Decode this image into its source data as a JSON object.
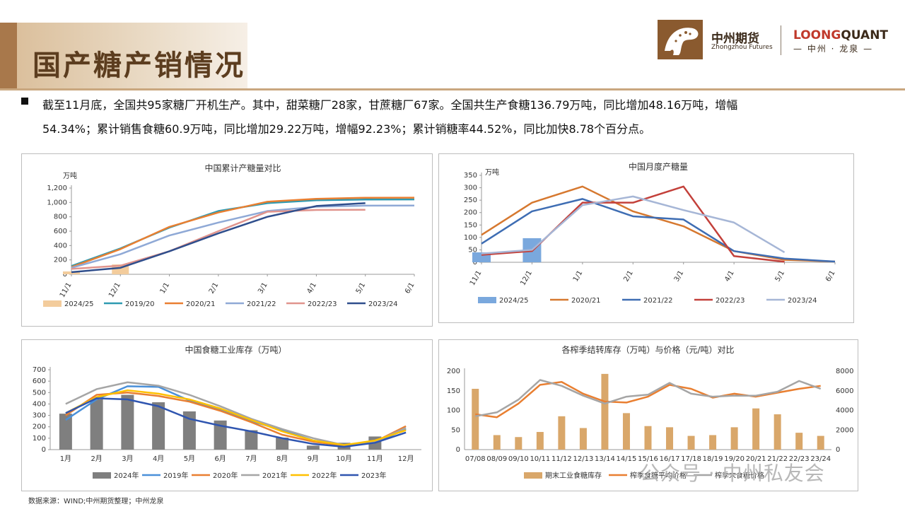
{
  "page": {
    "title": "国产糖产销情况",
    "summary_line1": "截至11月底，全国共95家糖厂开机生产。其中，甜菜糖厂28家，甘蔗糖厂67家。全国共生产食糖136.79万吨，同比增加48.16万吨，增幅",
    "summary_line2": "54.34%；累计销售食糖60.9万吨，同比增加29.22万吨，增幅92.23%；累计销糖率44.52%，同比加快8.78个百分点。",
    "source": "数据来源：WIND;中州期货整理；中州龙泉",
    "watermark": "公众号 · 中州私友会"
  },
  "logo": {
    "company_cn": "中州期货",
    "company_en": "Zhongzhou Futures",
    "partner_en_a": "LOONG",
    "partner_en_b": "QUANT",
    "partner_cn": "— 中州 · 龙泉 —"
  },
  "chart_data": [
    {
      "id": "c1",
      "type": "line",
      "title": "中国累计产糖量对比",
      "unit": "万吨",
      "categories": [
        "11/1",
        "12/1",
        "1/1",
        "2/1",
        "3/1",
        "4/1",
        "5/1",
        "6/1"
      ],
      "ylim": [
        0,
        1200
      ],
      "yticks": [
        "0",
        "200",
        "400",
        "600",
        "800",
        "1,000",
        "1,200"
      ],
      "bar": {
        "name": "2024/25",
        "color": "#f3cc9c",
        "values": [
          40,
          137
        ]
      },
      "series": [
        {
          "name": "2019/20",
          "color": "#2e9ab1",
          "values": [
            115,
            360,
            650,
            880,
            990,
            1030,
            1040,
            1042
          ]
        },
        {
          "name": "2020/21",
          "color": "#e97f31",
          "values": [
            100,
            350,
            660,
            860,
            1010,
            1050,
            1065,
            1066
          ]
        },
        {
          "name": "2021/22",
          "color": "#8fa9d6",
          "values": [
            90,
            280,
            540,
            720,
            880,
            940,
            955,
            956
          ]
        },
        {
          "name": "2022/23",
          "color": "#e0948d",
          "values": [
            75,
            120,
            320,
            600,
            870,
            895,
            898,
            null
          ]
        },
        {
          "name": "2023/24",
          "color": "#2f4e8c",
          "values": [
            30,
            90,
            320,
            570,
            800,
            950,
            990,
            null
          ]
        }
      ],
      "legend": [
        "2024/25",
        "2019/20",
        "2020/21",
        "2021/22",
        "2022/23",
        "2023/24"
      ]
    },
    {
      "id": "c2",
      "type": "line",
      "title": "中国月度产糖量",
      "unit": "万吨",
      "categories": [
        "11/1",
        "12/1",
        "1/1",
        "2/1",
        "3/1",
        "4/1",
        "5/1",
        "6/1"
      ],
      "ylim": [
        0,
        350
      ],
      "yticks": [
        "0",
        "50",
        "100",
        "150",
        "200",
        "250",
        "300",
        "350"
      ],
      "bar": {
        "name": "2024/25",
        "color": "#7aa8dd",
        "values": [
          40,
          97
        ]
      },
      "series": [
        {
          "name": "2020/21",
          "color": "#d6782f",
          "values": [
            110,
            240,
            305,
            205,
            145,
            45,
            10,
            3
          ]
        },
        {
          "name": "2021/22",
          "color": "#3e6db3",
          "values": [
            75,
            205,
            255,
            185,
            172,
            45,
            15,
            3
          ]
        },
        {
          "name": "2022/23",
          "color": "#c3403a",
          "values": [
            30,
            45,
            240,
            240,
            305,
            25,
            2,
            null
          ]
        },
        {
          "name": "2023/24",
          "color": "#a6b6d6",
          "values": [
            35,
            50,
            230,
            265,
            210,
            160,
            40,
            null
          ]
        }
      ],
      "legend": [
        "2024/25",
        "2020/21",
        "2021/22",
        "2022/23",
        "2023/24"
      ]
    },
    {
      "id": "c3",
      "type": "line",
      "title": "中国食糖工业库存（万吨）",
      "categories": [
        "1月",
        "2月",
        "3月",
        "4月",
        "5月",
        "6月",
        "7月",
        "8月",
        "9月",
        "10月",
        "11月",
        "12月"
      ],
      "ylim": [
        0,
        700
      ],
      "yticks": [
        "0",
        "100",
        "200",
        "300",
        "400",
        "500",
        "600",
        "700"
      ],
      "bar": {
        "name": "2024年",
        "color": "#7f7f7f",
        "values": [
          315,
          440,
          480,
          415,
          335,
          255,
          170,
          105,
          35,
          60,
          115
        ]
      },
      "series": [
        {
          "name": "2019年",
          "color": "#4a90d9",
          "values": [
            260,
            440,
            555,
            550,
            430,
            350,
            250,
            170,
            80,
            40,
            60,
            180
          ]
        },
        {
          "name": "2020年",
          "color": "#e97f31",
          "values": [
            300,
            480,
            500,
            470,
            420,
            340,
            240,
            130,
            70,
            35,
            70,
            205
          ]
        },
        {
          "name": "2021年",
          "color": "#a5a5a5",
          "values": [
            400,
            530,
            590,
            560,
            480,
            380,
            270,
            180,
            100,
            40,
            70,
            190
          ]
        },
        {
          "name": "2022年",
          "color": "#ffc000",
          "values": [
            320,
            460,
            520,
            490,
            440,
            360,
            260,
            160,
            80,
            40,
            80,
            170
          ]
        },
        {
          "name": "2023年",
          "color": "#2f55b0",
          "values": [
            320,
            450,
            440,
            380,
            270,
            210,
            160,
            100,
            50,
            25,
            60,
            150
          ]
        }
      ],
      "legend": [
        "2024年",
        "2019年",
        "2020年",
        "2021年",
        "2022年",
        "2023年"
      ]
    },
    {
      "id": "c4",
      "type": "bar",
      "title": "各榨季结转库存（万吨）与价格（元/吨）对比",
      "categories": [
        "07/08",
        "08/09",
        "09/10",
        "10/11",
        "11/12",
        "12/13",
        "13/14",
        "14/15",
        "15/16",
        "16/17",
        "17/18",
        "18/19",
        "19/20",
        "20/21",
        "21/22",
        "22/23",
        "23/24"
      ],
      "ylim": [
        0,
        200
      ],
      "yticks": [
        "0",
        "50",
        "100",
        "150",
        "200"
      ],
      "y2lim": [
        0,
        8000
      ],
      "y2ticks": [
        "0",
        "2000",
        "4000",
        "6000",
        "8000"
      ],
      "bar": {
        "name": "期末工业食糖库存",
        "color": "#d9a76a",
        "values": [
          155,
          37,
          32,
          45,
          85,
          55,
          193,
          93,
          60,
          57,
          35,
          37,
          57,
          105,
          90,
          43,
          35
        ]
      },
      "series": [
        {
          "name": "榨季食糖平均价格",
          "color": "#e97f31",
          "axis": "right",
          "values": [
            3600,
            3300,
            4700,
            6600,
            6900,
            5700,
            4900,
            4800,
            5400,
            6600,
            6200,
            5300,
            5700,
            5400,
            5800,
            6200,
            6500
          ]
        },
        {
          "name": "榨季末食糖价格",
          "color": "#a5a5a5",
          "axis": "right",
          "values": [
            3400,
            3800,
            5100,
            7100,
            6500,
            5500,
            4700,
            5400,
            5600,
            6800,
            5700,
            5400,
            5500,
            5500,
            5900,
            7000,
            6200
          ]
        }
      ],
      "legend": [
        "期末工业食糖库存",
        "榨季食糖平均价格",
        "榨季末食糖价格"
      ]
    }
  ]
}
